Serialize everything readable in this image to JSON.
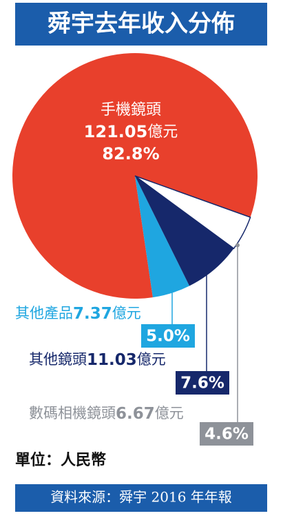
{
  "chart_data": {
    "type": "pie",
    "title": "舜宇去年收入分佈",
    "categories": [
      "手機鏡頭",
      "其他產品",
      "其他鏡頭",
      "數碼相機鏡頭"
    ],
    "amounts": [
      121.05,
      7.37,
      11.03,
      6.67
    ],
    "unit": "億元",
    "values": [
      82.8,
      5.0,
      7.6,
      4.6
    ],
    "value_labels": [
      "82.8%",
      "5.0%",
      "7.6%",
      "4.6%"
    ],
    "colors": [
      "#e8402c",
      "#1fa6e0",
      "#16286b",
      "#ffffff"
    ],
    "label_colors": [
      "#ffffff",
      "#1fa6e0",
      "#16286b",
      "#8e9299"
    ],
    "note": "單位：人民幣",
    "source": "資料來源：舜宇 2016 年年報"
  }
}
